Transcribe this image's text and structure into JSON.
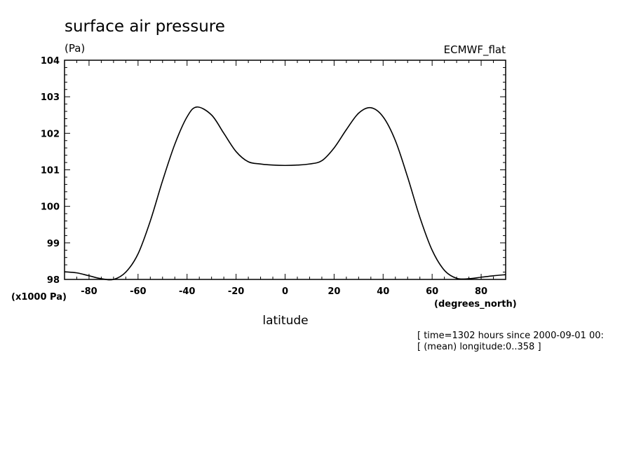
{
  "chart_data": {
    "type": "line",
    "title": "surface air pressure",
    "units": "(Pa)",
    "dataset": "ECMWF_flat",
    "xlabel": "latitude",
    "xunits": "(degrees_north)",
    "yscale_label": "(x1000 Pa)",
    "xlim": [
      -90,
      90
    ],
    "ylim": [
      98,
      104
    ],
    "xticks": [
      -80,
      -60,
      -40,
      -20,
      0,
      20,
      40,
      60,
      80
    ],
    "xtick_labels": [
      "-80",
      "-60",
      "-40",
      "-20",
      "0",
      "20",
      "40",
      "60",
      "80"
    ],
    "yticks": [
      98,
      99,
      100,
      101,
      102,
      103,
      104
    ],
    "ytick_labels": [
      "98",
      "99",
      "100",
      "101",
      "102",
      "103",
      "104"
    ],
    "grid": false,
    "notes": [
      "[ time=1302 hours since 2000-09-01 00:",
      "[ (mean) longitude:0..358 ]"
    ],
    "series": [
      {
        "x": [
          -90,
          -85,
          -80,
          -75,
          -70,
          -65,
          -60,
          -55,
          -50,
          -45,
          -40,
          -36,
          -30,
          -25,
          -20,
          -15,
          -10,
          -5,
          0,
          5,
          10,
          15,
          20,
          25,
          30,
          35,
          40,
          45,
          50,
          55,
          60,
          65,
          70,
          75,
          80,
          85,
          90
        ],
        "y": [
          98.21,
          98.18,
          98.1,
          98.02,
          98.0,
          98.2,
          98.7,
          99.6,
          100.7,
          101.7,
          102.45,
          102.72,
          102.5,
          102.0,
          101.5,
          101.22,
          101.16,
          101.13,
          101.12,
          101.13,
          101.16,
          101.25,
          101.6,
          102.1,
          102.55,
          102.7,
          102.45,
          101.8,
          100.8,
          99.7,
          98.8,
          98.25,
          98.03,
          98.02,
          98.06,
          98.1,
          98.13
        ]
      }
    ]
  }
}
